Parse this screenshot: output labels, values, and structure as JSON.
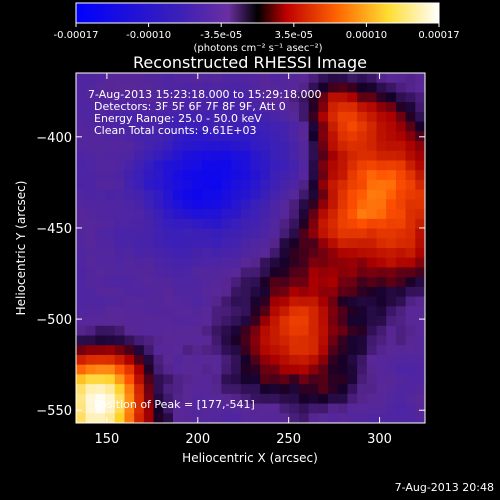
{
  "colorbar": {
    "ticks": [
      "-0.00017",
      "-0.00010",
      "-3.5e-05",
      "3.5e-05",
      "0.00010",
      "0.00017"
    ],
    "unit_label": "(photons cm⁻² s⁻¹ asec⁻²)",
    "colors": [
      "#0000ff",
      "#3a1fb8",
      "#6a2fa0",
      "#ff0000",
      "#ff8800",
      "#ffff99",
      "#ffffff"
    ]
  },
  "chart_data": {
    "type": "heatmap",
    "title": "Reconstructed RHESSI Image",
    "xlabel": "Heliocentric X (arcsec)",
    "ylabel": "Heliocentric Y (arcsec)",
    "xlim": [
      133,
      325
    ],
    "ylim": [
      -557,
      -365
    ],
    "x_ticks": [
      150,
      200,
      250,
      300
    ],
    "y_ticks": [
      -550,
      -500,
      -450,
      -400
    ],
    "info_lines": [
      "7-Aug-2013 15:23:18.000 to 15:29:18.000",
      "Detectors: 3F 5F 6F 7F 8F 9F, Att 0",
      "Energy Range: 25.0 - 50.0 keV",
      "Clean     Total counts: 9.61E+03"
    ],
    "peak_label": "Position of Peak = [177,-541]",
    "peak": [
      177,
      -541
    ],
    "value_range": [
      -0.00017,
      0.00017
    ]
  },
  "footer": {
    "timestamp": "7-Aug-2013 20:48"
  }
}
